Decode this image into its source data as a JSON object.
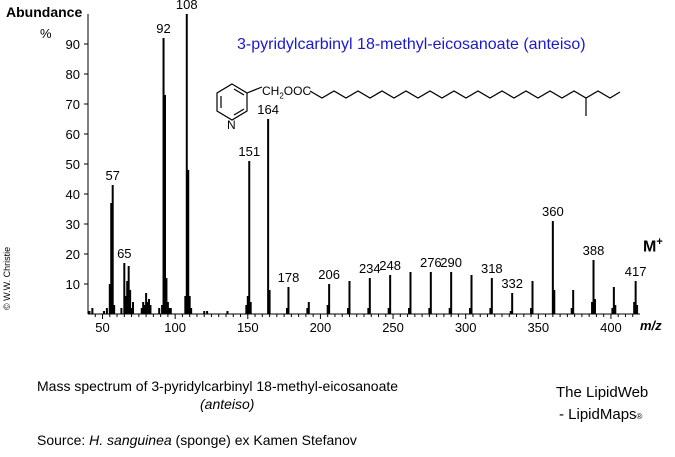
{
  "figure": {
    "y_label": "Abundance",
    "y_unit": "%",
    "x_unit": "m/z",
    "title": "3-pyridylcarbinyl 18-methyl-eicosanoate (anteiso)",
    "structure_label_prefix": "CH",
    "structure_label_sub": "2",
    "structure_label_suffix": "OOC",
    "ring_atom": "N",
    "copyright": "© W.W. Christie",
    "molecular_ion_label": "M",
    "molecular_ion_sup": "+",
    "caption_line1": "Mass spectrum of 3-pyridylcarbinyl 18-methyl-eicosanoate",
    "caption_line2": "(anteiso)",
    "source_prefix": "Source: ",
    "source_species": "H. sanguinea",
    "source_suffix": " (sponge) ex Kamen Stefanov",
    "brand_line1": "The LipidWeb",
    "brand_line2": "- LipidMaps",
    "brand_mark": "®"
  },
  "chart_data": {
    "type": "bar",
    "xlabel": "m/z",
    "ylabel": "Abundance %",
    "xlim": [
      40,
      420
    ],
    "ylim": [
      0,
      100
    ],
    "x_ticks": [
      50,
      100,
      150,
      200,
      250,
      300,
      350,
      400
    ],
    "y_ticks": [
      10,
      20,
      30,
      40,
      50,
      60,
      70,
      80,
      90
    ],
    "peaks": [
      {
        "mz": 41,
        "value": 1
      },
      {
        "mz": 43,
        "value": 2
      },
      {
        "mz": 51,
        "value": 1
      },
      {
        "mz": 53,
        "value": 2
      },
      {
        "mz": 55,
        "value": 10
      },
      {
        "mz": 56,
        "value": 37
      },
      {
        "mz": 57,
        "value": 43
      },
      {
        "mz": 58,
        "value": 3
      },
      {
        "mz": 63,
        "value": 2
      },
      {
        "mz": 65,
        "value": 17
      },
      {
        "mz": 66,
        "value": 6
      },
      {
        "mz": 67,
        "value": 11
      },
      {
        "mz": 68,
        "value": 16
      },
      {
        "mz": 69,
        "value": 8
      },
      {
        "mz": 70,
        "value": 2
      },
      {
        "mz": 71,
        "value": 4
      },
      {
        "mz": 77,
        "value": 2
      },
      {
        "mz": 78,
        "value": 4
      },
      {
        "mz": 79,
        "value": 3
      },
      {
        "mz": 80,
        "value": 7
      },
      {
        "mz": 81,
        "value": 4
      },
      {
        "mz": 82,
        "value": 5
      },
      {
        "mz": 83,
        "value": 3
      },
      {
        "mz": 89,
        "value": 2
      },
      {
        "mz": 91,
        "value": 3
      },
      {
        "mz": 92,
        "value": 92
      },
      {
        "mz": 93,
        "value": 73
      },
      {
        "mz": 94,
        "value": 12
      },
      {
        "mz": 95,
        "value": 4
      },
      {
        "mz": 96,
        "value": 2
      },
      {
        "mz": 97,
        "value": 2
      },
      {
        "mz": 107,
        "value": 6
      },
      {
        "mz": 108,
        "value": 100
      },
      {
        "mz": 109,
        "value": 48
      },
      {
        "mz": 110,
        "value": 6
      },
      {
        "mz": 111,
        "value": 2
      },
      {
        "mz": 120,
        "value": 1
      },
      {
        "mz": 122,
        "value": 1
      },
      {
        "mz": 136,
        "value": 1
      },
      {
        "mz": 149,
        "value": 3
      },
      {
        "mz": 150,
        "value": 6
      },
      {
        "mz": 151,
        "value": 51
      },
      {
        "mz": 152,
        "value": 4
      },
      {
        "mz": 164,
        "value": 65
      },
      {
        "mz": 165,
        "value": 8
      },
      {
        "mz": 177,
        "value": 2
      },
      {
        "mz": 178,
        "value": 9
      },
      {
        "mz": 191,
        "value": 2
      },
      {
        "mz": 192,
        "value": 4
      },
      {
        "mz": 205,
        "value": 3
      },
      {
        "mz": 206,
        "value": 10
      },
      {
        "mz": 219,
        "value": 2
      },
      {
        "mz": 220,
        "value": 11
      },
      {
        "mz": 233,
        "value": 2
      },
      {
        "mz": 234,
        "value": 12
      },
      {
        "mz": 247,
        "value": 2
      },
      {
        "mz": 248,
        "value": 13
      },
      {
        "mz": 261,
        "value": 2
      },
      {
        "mz": 262,
        "value": 14
      },
      {
        "mz": 275,
        "value": 2
      },
      {
        "mz": 276,
        "value": 14
      },
      {
        "mz": 289,
        "value": 2
      },
      {
        "mz": 290,
        "value": 14
      },
      {
        "mz": 303,
        "value": 2
      },
      {
        "mz": 304,
        "value": 13
      },
      {
        "mz": 317,
        "value": 2
      },
      {
        "mz": 318,
        "value": 12
      },
      {
        "mz": 331,
        "value": 1
      },
      {
        "mz": 332,
        "value": 7
      },
      {
        "mz": 345,
        "value": 2
      },
      {
        "mz": 346,
        "value": 11
      },
      {
        "mz": 360,
        "value": 31
      },
      {
        "mz": 361,
        "value": 8
      },
      {
        "mz": 373,
        "value": 2
      },
      {
        "mz": 374,
        "value": 8
      },
      {
        "mz": 387,
        "value": 4
      },
      {
        "mz": 388,
        "value": 18
      },
      {
        "mz": 389,
        "value": 5
      },
      {
        "mz": 401,
        "value": 2
      },
      {
        "mz": 402,
        "value": 9
      },
      {
        "mz": 403,
        "value": 3
      },
      {
        "mz": 416,
        "value": 4
      },
      {
        "mz": 417,
        "value": 11
      },
      {
        "mz": 418,
        "value": 3
      }
    ],
    "annotations": [
      {
        "mz": 57,
        "label": "57"
      },
      {
        "mz": 65,
        "label": "65"
      },
      {
        "mz": 92,
        "label": "92"
      },
      {
        "mz": 108,
        "label": "108"
      },
      {
        "mz": 151,
        "label": "151"
      },
      {
        "mz": 164,
        "label": "164"
      },
      {
        "mz": 178,
        "label": "178"
      },
      {
        "mz": 206,
        "label": "206"
      },
      {
        "mz": 234,
        "label": "234"
      },
      {
        "mz": 248,
        "label": "248"
      },
      {
        "mz": 276,
        "label": "276"
      },
      {
        "mz": 290,
        "label": "290"
      },
      {
        "mz": 318,
        "label": "318"
      },
      {
        "mz": 332,
        "label": "332"
      },
      {
        "mz": 360,
        "label": "360"
      },
      {
        "mz": 388,
        "label": "388"
      },
      {
        "mz": 417,
        "label": "417"
      }
    ]
  }
}
